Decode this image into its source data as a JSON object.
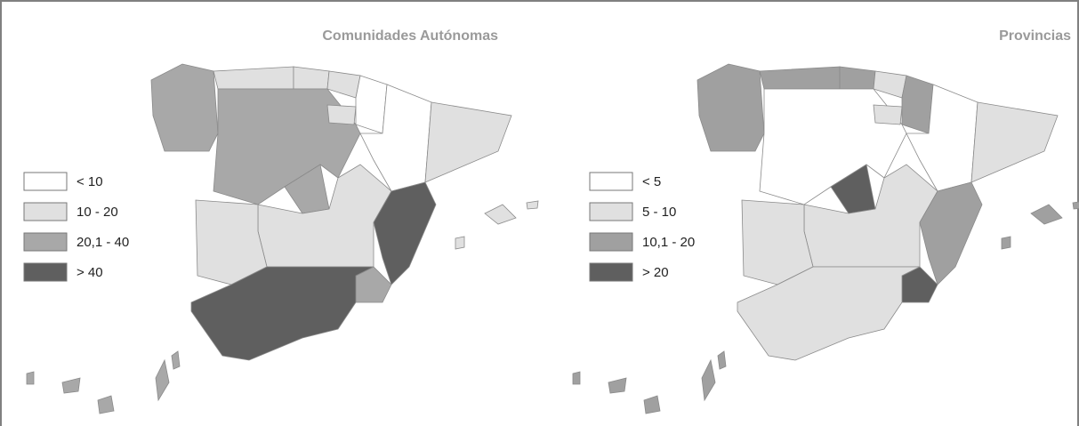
{
  "panels": [
    {
      "title": "Comunidades Autónomas",
      "legend": [
        {
          "label": "< 10",
          "color": "#ffffff"
        },
        {
          "label": "10 - 20",
          "color": "#e0e0e0"
        },
        {
          "label": "20,1 - 40",
          "color": "#a8a8a8"
        },
        {
          "label": "> 40",
          "color": "#5f5f5f"
        }
      ]
    },
    {
      "title": "Provincias",
      "legend": [
        {
          "label": "< 5",
          "color": "#ffffff"
        },
        {
          "label": "5 - 10",
          "color": "#e0e0e0"
        },
        {
          "label": "10,1 - 20",
          "color": "#a0a0a0"
        },
        {
          "label": "> 20",
          "color": "#5f5f5f"
        }
      ]
    }
  ]
}
